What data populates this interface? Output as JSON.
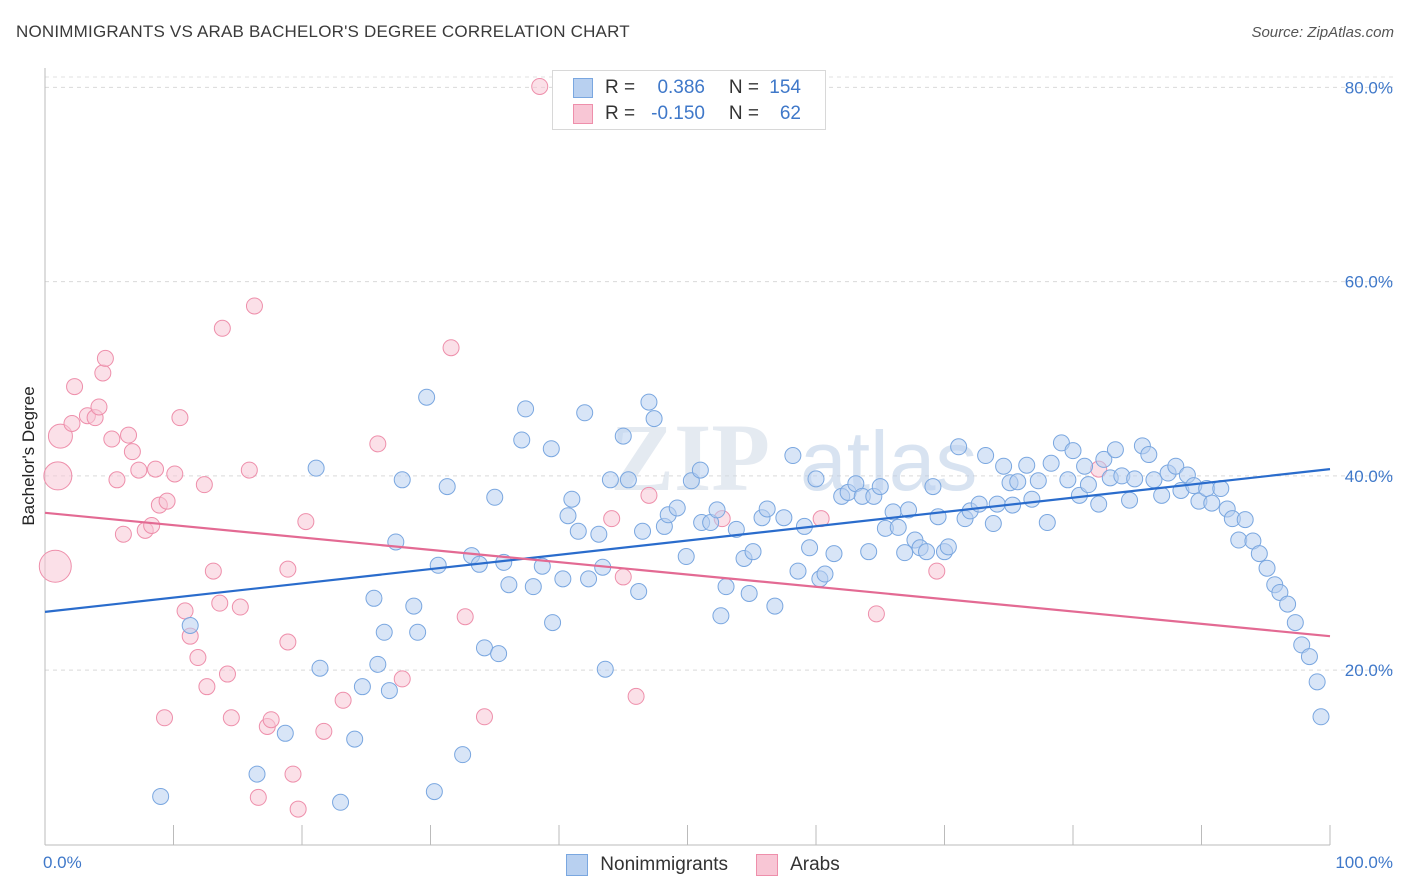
{
  "header": {
    "title": "NONIMMIGRANTS VS ARAB BACHELOR'S DEGREE CORRELATION CHART",
    "source": "Source: ZipAtlas.com"
  },
  "watermark": "ZIPatlas",
  "legend": {
    "rows": [
      {
        "r_label": "R =",
        "r_value": "0.386",
        "n_label": "N =",
        "n_value": "154",
        "color": "#7aa7e0"
      },
      {
        "r_label": "R =",
        "r_value": "-0.150",
        "n_label": "N =",
        "n_value": "62",
        "color": "#ee8fab"
      }
    ]
  },
  "bottom_legend": [
    {
      "label": "Nonimmigrants",
      "color": "#7aa7e0"
    },
    {
      "label": "Arabs",
      "color": "#ee8fab"
    }
  ],
  "chart_data": {
    "type": "scatter",
    "title": "NONIMMIGRANTS VS ARAB BACHELOR'S DEGREE CORRELATION CHART",
    "xlabel": "",
    "ylabel": "Bachelor's Degree",
    "xlim": [
      0,
      100
    ],
    "ylim": [
      2,
      82
    ],
    "x_tick_labels": [
      "0.0%",
      "100.0%"
    ],
    "y_ticks": [
      20,
      40,
      60,
      80
    ],
    "y_tick_labels": [
      "20.0%",
      "40.0%",
      "60.0%",
      "80.0%"
    ],
    "grid": true,
    "legend_position": "top-center",
    "series": [
      {
        "name": "Nonimmigrants",
        "color": "#7aa7e0",
        "line_color": "#2a6ccc",
        "trend": {
          "x": [
            0,
            100
          ],
          "y": [
            26.0,
            40.7
          ]
        },
        "points": [
          [
            9.0,
            7.0
          ],
          [
            11.3,
            24.6
          ],
          [
            16.5,
            9.3
          ],
          [
            18.7,
            13.5
          ],
          [
            21.4,
            20.2
          ],
          [
            21.1,
            40.8
          ],
          [
            23.0,
            6.4
          ],
          [
            24.1,
            12.9
          ],
          [
            24.7,
            18.3
          ],
          [
            25.6,
            27.4
          ],
          [
            25.9,
            20.6
          ],
          [
            26.4,
            23.9
          ],
          [
            26.8,
            17.9
          ],
          [
            27.3,
            33.2
          ],
          [
            27.8,
            39.6
          ],
          [
            28.7,
            26.6
          ],
          [
            29.0,
            23.9
          ],
          [
            29.7,
            48.1
          ],
          [
            30.3,
            7.5
          ],
          [
            30.6,
            30.8
          ],
          [
            31.3,
            38.9
          ],
          [
            32.5,
            11.3
          ],
          [
            33.2,
            31.8
          ],
          [
            33.8,
            30.9
          ],
          [
            34.2,
            22.3
          ],
          [
            35.0,
            37.8
          ],
          [
            35.3,
            21.7
          ],
          [
            35.7,
            31.1
          ],
          [
            36.1,
            28.8
          ],
          [
            37.1,
            43.7
          ],
          [
            37.4,
            46.9
          ],
          [
            38.0,
            28.6
          ],
          [
            38.7,
            30.7
          ],
          [
            39.4,
            42.8
          ],
          [
            39.5,
            24.9
          ],
          [
            40.3,
            29.4
          ],
          [
            40.7,
            35.9
          ],
          [
            41.0,
            37.6
          ],
          [
            41.5,
            34.3
          ],
          [
            42.0,
            46.5
          ],
          [
            42.3,
            29.4
          ],
          [
            43.1,
            34.0
          ],
          [
            43.4,
            30.6
          ],
          [
            43.6,
            20.1
          ],
          [
            44.0,
            39.6
          ],
          [
            45.0,
            44.1
          ],
          [
            45.4,
            39.6
          ],
          [
            46.2,
            28.1
          ],
          [
            46.5,
            34.3
          ],
          [
            47.0,
            47.6
          ],
          [
            47.4,
            45.9
          ],
          [
            48.2,
            34.8
          ],
          [
            48.5,
            36.0
          ],
          [
            49.2,
            36.7
          ],
          [
            49.9,
            31.7
          ],
          [
            50.3,
            39.5
          ],
          [
            51.0,
            40.6
          ],
          [
            51.1,
            35.2
          ],
          [
            51.8,
            35.2
          ],
          [
            52.3,
            36.5
          ],
          [
            52.6,
            25.6
          ],
          [
            53.0,
            28.6
          ],
          [
            53.8,
            34.5
          ],
          [
            54.4,
            31.5
          ],
          [
            54.8,
            27.9
          ],
          [
            55.1,
            32.2
          ],
          [
            55.8,
            35.7
          ],
          [
            56.2,
            36.6
          ],
          [
            56.8,
            26.6
          ],
          [
            57.5,
            35.7
          ],
          [
            58.2,
            42.1
          ],
          [
            58.6,
            30.2
          ],
          [
            59.1,
            34.8
          ],
          [
            59.5,
            32.6
          ],
          [
            60.0,
            39.7
          ],
          [
            60.3,
            29.4
          ],
          [
            60.7,
            29.9
          ],
          [
            61.4,
            32.0
          ],
          [
            62.0,
            37.9
          ],
          [
            62.5,
            38.3
          ],
          [
            63.1,
            39.2
          ],
          [
            63.6,
            37.9
          ],
          [
            64.1,
            32.2
          ],
          [
            64.5,
            37.9
          ],
          [
            65.0,
            38.9
          ],
          [
            65.4,
            34.6
          ],
          [
            66.0,
            36.3
          ],
          [
            66.4,
            34.7
          ],
          [
            66.9,
            32.1
          ],
          [
            67.2,
            36.5
          ],
          [
            67.7,
            33.4
          ],
          [
            68.1,
            32.6
          ],
          [
            68.6,
            32.2
          ],
          [
            69.1,
            38.9
          ],
          [
            69.5,
            35.8
          ],
          [
            70.0,
            32.2
          ],
          [
            70.3,
            32.7
          ],
          [
            71.1,
            43.0
          ],
          [
            71.6,
            35.6
          ],
          [
            72.0,
            36.4
          ],
          [
            72.7,
            37.1
          ],
          [
            73.2,
            42.1
          ],
          [
            73.8,
            35.1
          ],
          [
            74.1,
            37.1
          ],
          [
            74.6,
            41.0
          ],
          [
            75.1,
            39.3
          ],
          [
            75.3,
            37.0
          ],
          [
            75.7,
            39.4
          ],
          [
            76.4,
            41.1
          ],
          [
            76.8,
            37.6
          ],
          [
            77.3,
            39.5
          ],
          [
            78.0,
            35.2
          ],
          [
            78.3,
            41.3
          ],
          [
            79.1,
            43.4
          ],
          [
            79.6,
            39.6
          ],
          [
            80.0,
            42.6
          ],
          [
            80.5,
            38.0
          ],
          [
            80.9,
            41.0
          ],
          [
            81.2,
            39.1
          ],
          [
            82.0,
            37.1
          ],
          [
            82.4,
            41.7
          ],
          [
            82.9,
            39.8
          ],
          [
            83.3,
            42.7
          ],
          [
            83.8,
            40.0
          ],
          [
            84.4,
            37.5
          ],
          [
            84.8,
            39.7
          ],
          [
            85.4,
            43.1
          ],
          [
            85.9,
            42.2
          ],
          [
            86.3,
            39.6
          ],
          [
            86.9,
            38.0
          ],
          [
            87.4,
            40.3
          ],
          [
            88.0,
            41.0
          ],
          [
            88.4,
            38.5
          ],
          [
            88.9,
            40.1
          ],
          [
            89.4,
            39.0
          ],
          [
            89.8,
            37.4
          ],
          [
            90.4,
            38.7
          ],
          [
            90.8,
            37.2
          ],
          [
            91.5,
            38.7
          ],
          [
            92.0,
            36.6
          ],
          [
            92.4,
            35.6
          ],
          [
            92.9,
            33.4
          ],
          [
            93.4,
            35.5
          ],
          [
            94.0,
            33.3
          ],
          [
            94.5,
            32.0
          ],
          [
            95.1,
            30.5
          ],
          [
            95.7,
            28.8
          ],
          [
            96.1,
            28.0
          ],
          [
            96.7,
            26.8
          ],
          [
            97.3,
            24.9
          ],
          [
            97.8,
            22.6
          ],
          [
            98.4,
            21.4
          ],
          [
            99.0,
            18.8
          ],
          [
            99.3,
            15.2
          ]
        ]
      },
      {
        "name": "Arabs",
        "color": "#ee8fab",
        "line_color": "#e36a93",
        "trend": {
          "x": [
            0,
            100
          ],
          "y": [
            36.2,
            23.5
          ]
        },
        "points": [
          [
            0.8,
            30.7
          ],
          [
            1.0,
            40.0
          ],
          [
            1.2,
            44.1
          ],
          [
            2.1,
            45.4
          ],
          [
            2.3,
            49.2
          ],
          [
            3.3,
            46.2
          ],
          [
            3.9,
            46.0
          ],
          [
            4.2,
            47.1
          ],
          [
            4.5,
            50.6
          ],
          [
            4.7,
            52.1
          ],
          [
            5.2,
            43.8
          ],
          [
            5.6,
            39.6
          ],
          [
            6.1,
            34.0
          ],
          [
            6.5,
            44.2
          ],
          [
            6.8,
            42.5
          ],
          [
            7.3,
            40.6
          ],
          [
            7.8,
            34.4
          ],
          [
            8.3,
            34.9
          ],
          [
            8.6,
            40.7
          ],
          [
            8.9,
            37.0
          ],
          [
            9.3,
            15.1
          ],
          [
            9.5,
            37.4
          ],
          [
            10.1,
            40.2
          ],
          [
            10.5,
            46.0
          ],
          [
            10.9,
            26.1
          ],
          [
            11.3,
            23.5
          ],
          [
            11.9,
            21.3
          ],
          [
            12.4,
            39.1
          ],
          [
            12.6,
            18.3
          ],
          [
            13.1,
            30.2
          ],
          [
            13.6,
            26.9
          ],
          [
            13.8,
            55.2
          ],
          [
            14.2,
            19.6
          ],
          [
            14.5,
            15.1
          ],
          [
            15.2,
            26.5
          ],
          [
            15.9,
            40.6
          ],
          [
            16.3,
            57.5
          ],
          [
            16.6,
            6.9
          ],
          [
            17.3,
            14.2
          ],
          [
            17.6,
            14.9
          ],
          [
            18.9,
            22.9
          ],
          [
            18.9,
            30.4
          ],
          [
            19.3,
            9.3
          ],
          [
            19.7,
            5.7
          ],
          [
            20.3,
            35.3
          ],
          [
            21.7,
            13.7
          ],
          [
            23.2,
            16.9
          ],
          [
            25.9,
            43.3
          ],
          [
            27.8,
            19.1
          ],
          [
            31.6,
            53.2
          ],
          [
            32.7,
            25.5
          ],
          [
            34.2,
            15.2
          ],
          [
            38.5,
            80.1
          ],
          [
            44.1,
            35.6
          ],
          [
            45.0,
            29.6
          ],
          [
            46.0,
            17.3
          ],
          [
            47.0,
            38.0
          ],
          [
            52.7,
            35.6
          ],
          [
            60.4,
            35.6
          ],
          [
            64.7,
            25.8
          ],
          [
            69.4,
            30.2
          ],
          [
            82.0,
            40.7
          ]
        ]
      }
    ]
  }
}
